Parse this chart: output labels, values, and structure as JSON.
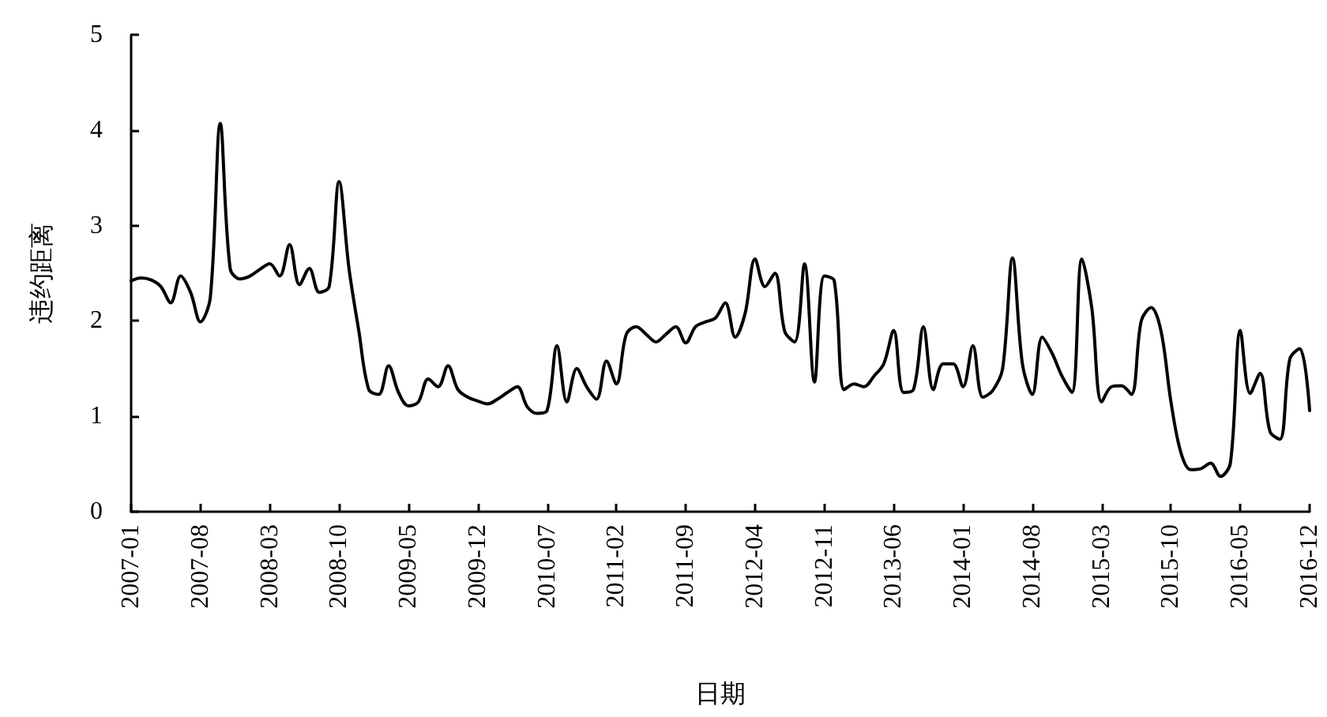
{
  "chart_data": {
    "type": "line",
    "xlabel": "日期",
    "ylabel": "违约距离",
    "categories": [
      "2007-01",
      null,
      null,
      null,
      null,
      null,
      null,
      "2007-08",
      null,
      null,
      null,
      null,
      null,
      null,
      "2008-03",
      null,
      null,
      null,
      null,
      null,
      null,
      "2008-10",
      null,
      null,
      null,
      null,
      null,
      null,
      "2009-05",
      null,
      null,
      null,
      null,
      null,
      null,
      "2009-12",
      null,
      null,
      null,
      null,
      null,
      null,
      "2010-07",
      null,
      null,
      null,
      null,
      null,
      null,
      "2011-02",
      null,
      null,
      null,
      null,
      null,
      null,
      "2011-09",
      null,
      null,
      null,
      null,
      null,
      null,
      "2012-04",
      null,
      null,
      null,
      null,
      null,
      null,
      "2012-11",
      null,
      null,
      null,
      null,
      null,
      null,
      "2013-06",
      null,
      null,
      null,
      null,
      null,
      null,
      "2014-01",
      null,
      null,
      null,
      null,
      null,
      null,
      "2014-08",
      null,
      null,
      null,
      null,
      null,
      null,
      "2015-03",
      null,
      null,
      null,
      null,
      null,
      null,
      "2015-10",
      null,
      null,
      null,
      null,
      null,
      null,
      "2016-05",
      null,
      null,
      null,
      null,
      null,
      null,
      "2016-12"
    ],
    "series": [
      {
        "color": "#000000",
        "values": [
          2.42,
          2.45,
          2.43,
          2.36,
          2.19,
          2.47,
          2.3,
          1.99,
          2.25,
          4.07,
          2.55,
          2.44,
          2.47,
          2.54,
          2.6,
          2.47,
          2.8,
          2.38,
          2.55,
          2.3,
          2.36,
          3.46,
          2.55,
          1.89,
          1.28,
          1.23,
          1.53,
          1.25,
          1.11,
          1.15,
          1.39,
          1.31,
          1.53,
          1.28,
          1.2,
          1.16,
          1.13,
          1.18,
          1.25,
          1.31,
          1.1,
          1.03,
          1.06,
          1.74,
          1.15,
          1.5,
          1.31,
          1.18,
          1.58,
          1.34,
          1.86,
          1.94,
          1.86,
          1.78,
          1.86,
          1.94,
          1.77,
          1.94,
          1.99,
          2.03,
          2.19,
          1.83,
          2.08,
          2.65,
          2.36,
          2.5,
          1.89,
          1.78,
          2.6,
          1.36,
          2.47,
          2.42,
          1.28,
          1.34,
          1.31,
          1.42,
          1.55,
          1.9,
          1.25,
          1.28,
          1.94,
          1.28,
          1.55,
          1.55,
          1.31,
          1.74,
          1.2,
          1.27,
          1.5,
          2.66,
          1.55,
          1.23,
          1.83,
          1.66,
          1.42,
          1.25,
          2.65,
          2.14,
          1.15,
          1.31,
          1.32,
          1.23,
          2.0,
          2.14,
          1.89,
          1.15,
          0.62,
          0.44,
          0.45,
          0.51,
          0.37,
          0.51,
          1.9,
          1.24,
          1.45,
          0.84,
          0.76,
          1.6,
          1.71,
          1.06
        ]
      }
    ],
    "ylim": [
      0,
      5
    ],
    "yticks": [
      0,
      1,
      2,
      3,
      4,
      5
    ],
    "grid": false,
    "marker": "none",
    "line_style": "solid"
  }
}
